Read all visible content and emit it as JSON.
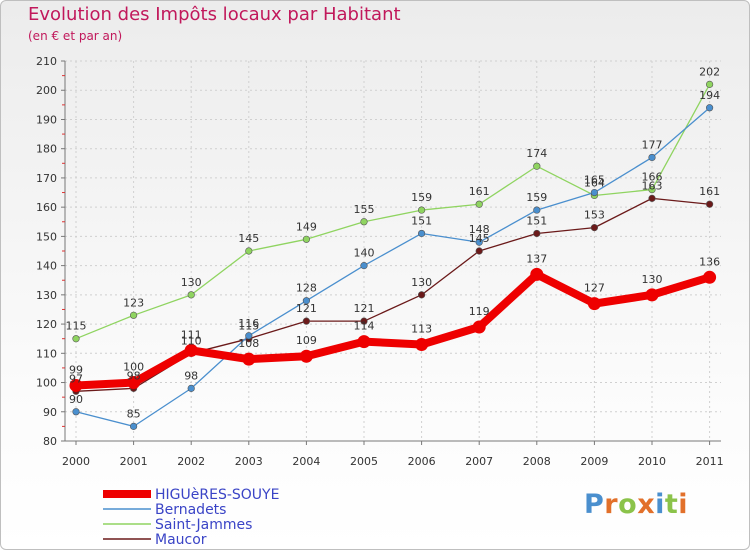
{
  "title": "Evolution des Impôts locaux par Habitant",
  "subtitle": "(en € et par an)",
  "logo_text": "Proxiti",
  "chart_data": {
    "type": "line",
    "title": "Evolution des Impôts locaux par Habitant",
    "subtitle": "(en € et par an)",
    "xlabel": "",
    "ylabel": "",
    "categories": [
      "2000",
      "2001",
      "2002",
      "2003",
      "2004",
      "2005",
      "2006",
      "2007",
      "2008",
      "2009",
      "2010",
      "2011"
    ],
    "ylim": [
      80,
      210
    ],
    "yticks": [
      80,
      90,
      100,
      110,
      120,
      130,
      140,
      150,
      160,
      170,
      180,
      190,
      200,
      210
    ],
    "grid": true,
    "legend_position": "bottom-left",
    "series": [
      {
        "name": "Maucor",
        "color": "#6b1a1a",
        "values": [
          97,
          98,
          110,
          115,
          121,
          121,
          130,
          145,
          151,
          153,
          163,
          161
        ]
      },
      {
        "name": "Saint-Jammes",
        "color": "#8fd460",
        "values": [
          115,
          123,
          130,
          145,
          149,
          155,
          159,
          161,
          174,
          164,
          166,
          202
        ]
      },
      {
        "name": "Bernadets",
        "color": "#4a8fce",
        "values": [
          90,
          85,
          98,
          116,
          128,
          140,
          151,
          148,
          159,
          165,
          177,
          194
        ]
      },
      {
        "name": "HIGUèRES-SOUYE",
        "color": "#ee0000",
        "values": [
          99,
          100,
          111,
          108,
          109,
          114,
          113,
          119,
          137,
          127,
          130,
          136
        ]
      }
    ],
    "legend_order": [
      "HIGUèRES-SOUYE",
      "Bernadets",
      "Saint-Jammes",
      "Maucor"
    ]
  }
}
